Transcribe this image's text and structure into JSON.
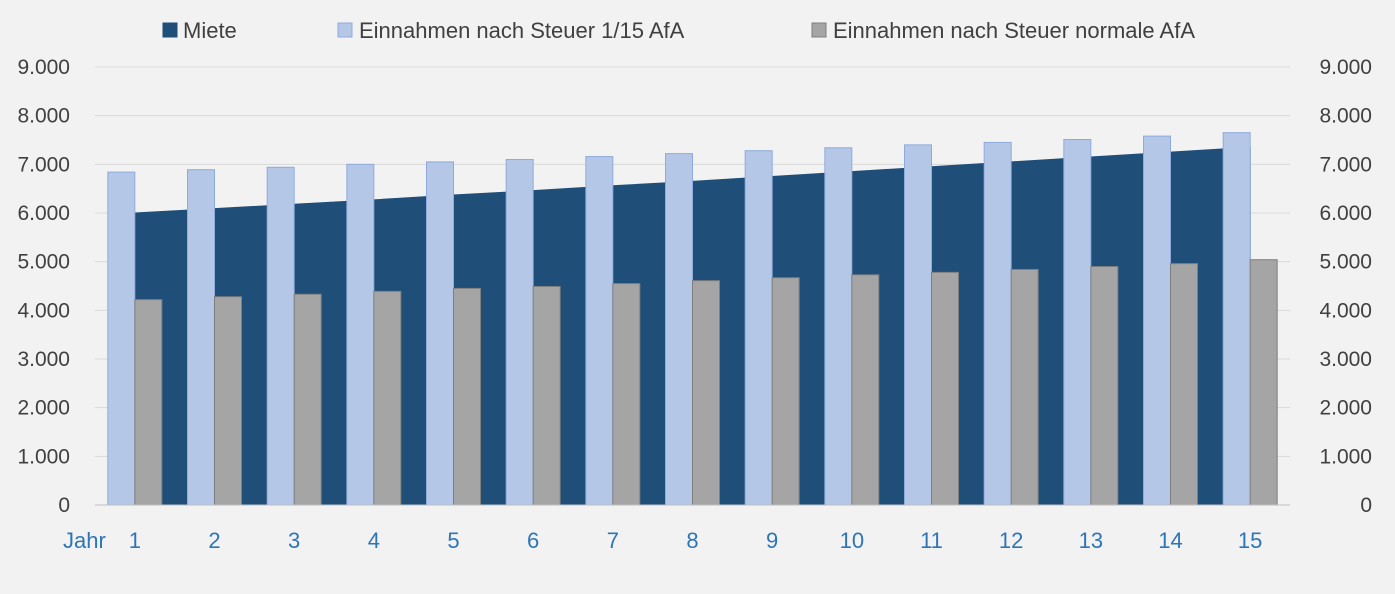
{
  "chart_data": {
    "type": "bar",
    "title": "",
    "xlabel": "Jahr",
    "ylabel": "",
    "categories": [
      "1",
      "2",
      "3",
      "4",
      "5",
      "6",
      "7",
      "8",
      "9",
      "10",
      "11",
      "12",
      "13",
      "14",
      "15"
    ],
    "ylim": [
      0,
      9000
    ],
    "yticks": [
      "0",
      "1.000",
      "2.000",
      "3.000",
      "4.000",
      "5.000",
      "6.000",
      "7.000",
      "8.000",
      "9.000"
    ],
    "secondary_axis_ticks": [
      "0",
      "1.000",
      "2.000",
      "3.000",
      "4.000",
      "5.000",
      "6.000",
      "7.000",
      "8.000",
      "9.000"
    ],
    "grid": true,
    "legend": "top",
    "series": [
      {
        "name": "Miete",
        "type": "area",
        "color": "#1f4e79",
        "border_color": "#1f4e79",
        "values": [
          6000,
          6090,
          6180,
          6270,
          6370,
          6460,
          6560,
          6650,
          6750,
          6850,
          6950,
          7050,
          7150,
          7250,
          7350
        ]
      },
      {
        "name": "Einnahmen nach Steuer 1/15 AfA",
        "type": "bar",
        "color": "#b4c7e7",
        "border_color": "#8faadc",
        "values": [
          6840,
          6890,
          6940,
          7000,
          7050,
          7100,
          7160,
          7220,
          7280,
          7340,
          7400,
          7450,
          7510,
          7580,
          7650
        ]
      },
      {
        "name": "Einnahmen nach Steuer normale AfA",
        "type": "bar",
        "color": "#a5a5a5",
        "border_color": "#7f7f7f",
        "values": [
          4220,
          4280,
          4330,
          4390,
          4450,
          4490,
          4550,
          4610,
          4670,
          4730,
          4780,
          4840,
          4900,
          4960,
          5040
        ]
      }
    ]
  }
}
